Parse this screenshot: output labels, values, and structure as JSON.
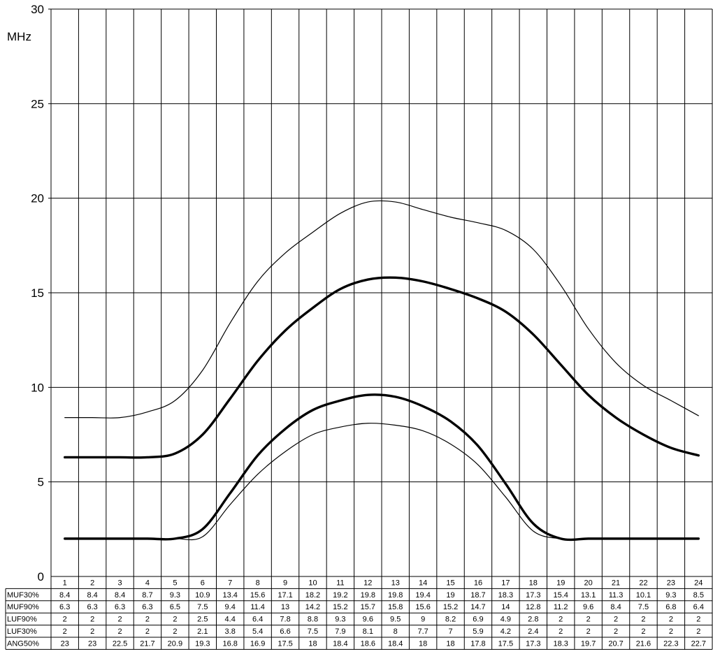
{
  "chart_data": {
    "type": "line",
    "ylabel": "MHz",
    "ylim": [
      0,
      30
    ],
    "yticks": [
      0,
      5,
      10,
      15,
      20,
      25,
      30
    ],
    "grid": true,
    "x": [
      1,
      2,
      3,
      4,
      5,
      6,
      7,
      8,
      9,
      10,
      11,
      12,
      13,
      14,
      15,
      16,
      17,
      18,
      19,
      20,
      21,
      22,
      23,
      24
    ],
    "series": [
      {
        "name": "MUF30%",
        "style": "thin",
        "values": [
          8.4,
          8.4,
          8.4,
          8.7,
          9.3,
          10.9,
          13.4,
          15.6,
          17.1,
          18.2,
          19.2,
          19.8,
          19.8,
          19.4,
          19,
          18.7,
          18.3,
          17.3,
          15.4,
          13.1,
          11.3,
          10.1,
          9.3,
          8.5
        ]
      },
      {
        "name": "MUF90%",
        "style": "thick",
        "values": [
          6.3,
          6.3,
          6.3,
          6.3,
          6.5,
          7.5,
          9.4,
          11.4,
          13,
          14.2,
          15.2,
          15.7,
          15.8,
          15.6,
          15.2,
          14.7,
          14,
          12.8,
          11.2,
          9.6,
          8.4,
          7.5,
          6.8,
          6.4
        ]
      },
      {
        "name": "LUF90%",
        "style": "thick",
        "values": [
          2,
          2,
          2,
          2,
          2,
          2.5,
          4.4,
          6.4,
          7.8,
          8.8,
          9.3,
          9.6,
          9.5,
          9,
          8.2,
          6.9,
          4.9,
          2.8,
          2,
          2,
          2,
          2,
          2,
          2
        ]
      },
      {
        "name": "LUF30%",
        "style": "thin",
        "values": [
          2,
          2,
          2,
          2,
          2,
          2.1,
          3.8,
          5.4,
          6.6,
          7.5,
          7.9,
          8.1,
          8,
          7.7,
          7,
          5.9,
          4.2,
          2.4,
          2,
          2,
          2,
          2,
          2,
          2
        ]
      }
    ],
    "table": [
      {
        "name": "MUF30%",
        "values": [
          "8.4",
          "8.4",
          "8.4",
          "8.7",
          "9.3",
          "10.9",
          "13.4",
          "15.6",
          "17.1",
          "18.2",
          "19.2",
          "19.8",
          "19.8",
          "19.4",
          "19",
          "18.7",
          "18.3",
          "17.3",
          "15.4",
          "13.1",
          "11.3",
          "10.1",
          "9.3",
          "8.5"
        ]
      },
      {
        "name": "MUF90%",
        "values": [
          "6.3",
          "6.3",
          "6.3",
          "6.3",
          "6.5",
          "7.5",
          "9.4",
          "11.4",
          "13",
          "14.2",
          "15.2",
          "15.7",
          "15.8",
          "15.6",
          "15.2",
          "14.7",
          "14",
          "12.8",
          "11.2",
          "9.6",
          "8.4",
          "7.5",
          "6.8",
          "6.4"
        ]
      },
      {
        "name": "LUF90%",
        "values": [
          "2",
          "2",
          "2",
          "2",
          "2",
          "2.5",
          "4.4",
          "6.4",
          "7.8",
          "8.8",
          "9.3",
          "9.6",
          "9.5",
          "9",
          "8.2",
          "6.9",
          "4.9",
          "2.8",
          "2",
          "2",
          "2",
          "2",
          "2",
          "2"
        ]
      },
      {
        "name": "LUF30%",
        "values": [
          "2",
          "2",
          "2",
          "2",
          "2",
          "2.1",
          "3.8",
          "5.4",
          "6.6",
          "7.5",
          "7.9",
          "8.1",
          "8",
          "7.7",
          "7",
          "5.9",
          "4.2",
          "2.4",
          "2",
          "2",
          "2",
          "2",
          "2",
          "2"
        ]
      },
      {
        "name": "ANG50%",
        "values": [
          "23",
          "23",
          "22.5",
          "21.7",
          "20.9",
          "19.3",
          "16.8",
          "16.9",
          "17.5",
          "18",
          "18.4",
          "18.6",
          "18.4",
          "18",
          "18",
          "17.8",
          "17.5",
          "17.3",
          "18.3",
          "19.7",
          "20.7",
          "21.6",
          "22.3",
          "22.7"
        ]
      }
    ]
  },
  "colors": {
    "line": "#000000",
    "grid": "#000000",
    "background": "#ffffff"
  }
}
